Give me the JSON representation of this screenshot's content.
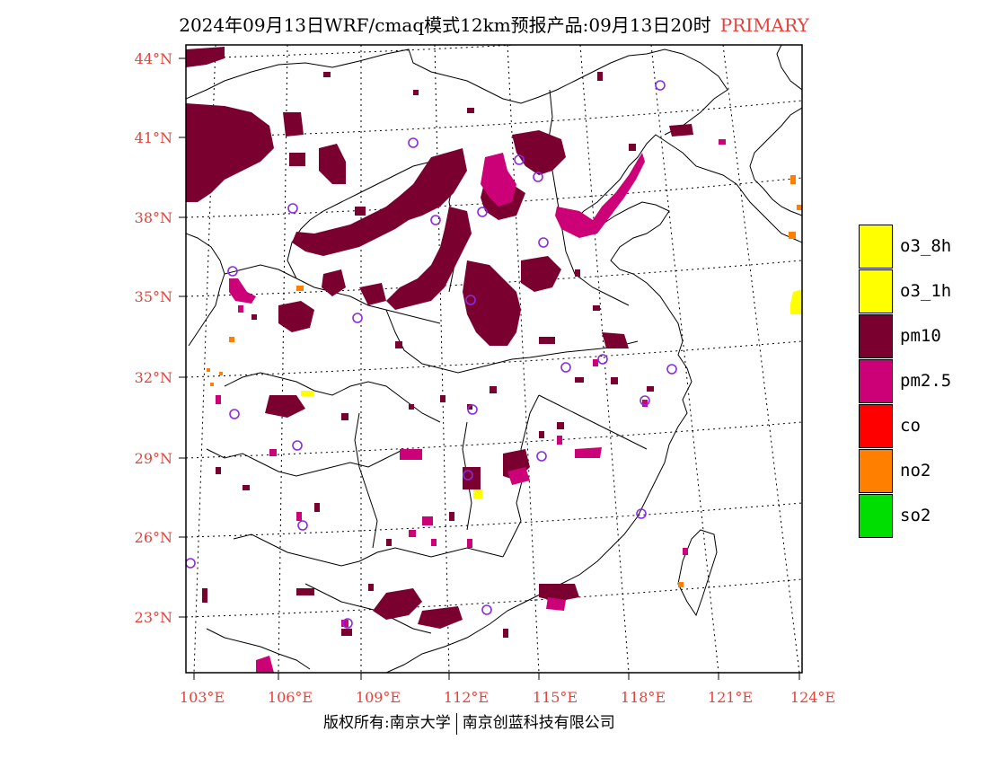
{
  "title": {
    "text": "2024年09月13日WRF/cmaq模式12km预报产品:09月13日20时",
    "tag": "PRIMARY"
  },
  "axes": {
    "lat_labels": [
      "44°N",
      "41°N",
      "38°N",
      "35°N",
      "32°N",
      "29°N",
      "26°N",
      "23°N"
    ],
    "lon_labels": [
      "103°E",
      "106°E",
      "109°E",
      "112°E",
      "115°E",
      "118°E",
      "121°E",
      "124°E"
    ],
    "label_color": "#e8413a"
  },
  "legend": [
    {
      "label": "o3_8h",
      "color": "#ffff00"
    },
    {
      "label": "o3_1h",
      "color": "#ffff00"
    },
    {
      "label": "pm10",
      "color": "#7a0030"
    },
    {
      "label": "pm2.5",
      "color": "#cc0077"
    },
    {
      "label": "co",
      "color": "#ff0000"
    },
    {
      "label": "no2",
      "color": "#ff7f00"
    },
    {
      "label": "so2",
      "color": "#00dd00"
    }
  ],
  "footer": {
    "left": "版权所有:南京大学",
    "right": "南京创蓝科技有限公司"
  },
  "colors": {
    "pm10": "#7a0030",
    "pm25": "#cc0077",
    "o3": "#ffff00",
    "no2": "#ff7f00",
    "city_marker": "#8a2be2"
  }
}
